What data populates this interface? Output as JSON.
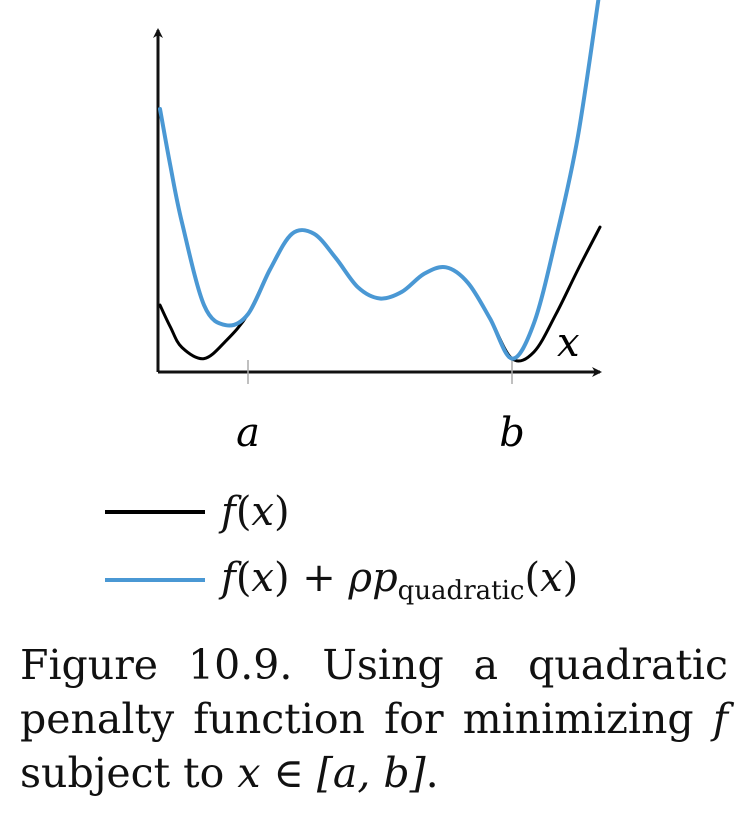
{
  "chart_data": {
    "type": "line",
    "xlabel": "x",
    "ylabel": "",
    "x_ticks": [
      "a",
      "b"
    ],
    "xlim": [
      0,
      5
    ],
    "ylim": [
      0,
      7
    ],
    "series": [
      {
        "name": "f(x)",
        "color": "#000000",
        "points": [
          [
            0.0,
            1.5
          ],
          [
            0.12,
            1.0
          ],
          [
            0.25,
            0.55
          ],
          [
            0.5,
            0.3
          ],
          [
            0.75,
            0.7
          ],
          [
            1.0,
            1.3
          ],
          [
            1.25,
            2.3
          ],
          [
            1.5,
            3.1
          ],
          [
            1.75,
            3.1
          ],
          [
            2.0,
            2.55
          ],
          [
            2.25,
            1.9
          ],
          [
            2.5,
            1.65
          ],
          [
            2.75,
            1.8
          ],
          [
            3.0,
            2.2
          ],
          [
            3.25,
            2.35
          ],
          [
            3.5,
            2.0
          ],
          [
            3.75,
            1.2
          ],
          [
            4.0,
            0.3
          ],
          [
            4.25,
            0.45
          ],
          [
            4.5,
            1.3
          ],
          [
            4.75,
            2.3
          ],
          [
            5.0,
            3.25
          ]
        ]
      },
      {
        "name": "f(x) + ρp_quadratic(x)",
        "color": "#4a98d4",
        "points": [
          [
            0.0,
            5.9
          ],
          [
            0.12,
            4.6
          ],
          [
            0.25,
            3.35
          ],
          [
            0.5,
            1.5
          ],
          [
            0.75,
            1.05
          ],
          [
            1.0,
            1.3
          ],
          [
            1.25,
            2.3
          ],
          [
            1.5,
            3.1
          ],
          [
            1.75,
            3.1
          ],
          [
            2.0,
            2.55
          ],
          [
            2.25,
            1.9
          ],
          [
            2.5,
            1.65
          ],
          [
            2.75,
            1.8
          ],
          [
            3.0,
            2.2
          ],
          [
            3.25,
            2.35
          ],
          [
            3.5,
            2.0
          ],
          [
            3.75,
            1.2
          ],
          [
            4.0,
            0.3
          ],
          [
            4.25,
            1.1
          ],
          [
            4.5,
            3.0
          ],
          [
            4.75,
            5.3
          ],
          [
            5.0,
            8.6
          ]
        ]
      }
    ],
    "tick_positions": {
      "a": 1.0,
      "b": 4.0
    }
  },
  "legend": [
    {
      "name": "f(x)",
      "f": "f",
      "open": "(",
      "var": "x",
      "close": ")",
      "color": "#000000"
    },
    {
      "name": "f(x) + ρp_quadratic(x)",
      "f": "f",
      "open": "(",
      "var": "x",
      "close": ")",
      "plus": " + ",
      "rho": "ρ",
      "p": "p",
      "sub": "quadratic",
      "open2": "(",
      "var2": "x",
      "close2": ")",
      "color": "#4a98d4"
    }
  ],
  "caption": {
    "line1": "Figure 10.9. Using a quadratic",
    "line2_text": "penalty function for minimizing ",
    "line2_var": "f",
    "line3_text": "subject to ",
    "line3_expr": "x ∈ [a, b]",
    "line3_end": "."
  }
}
